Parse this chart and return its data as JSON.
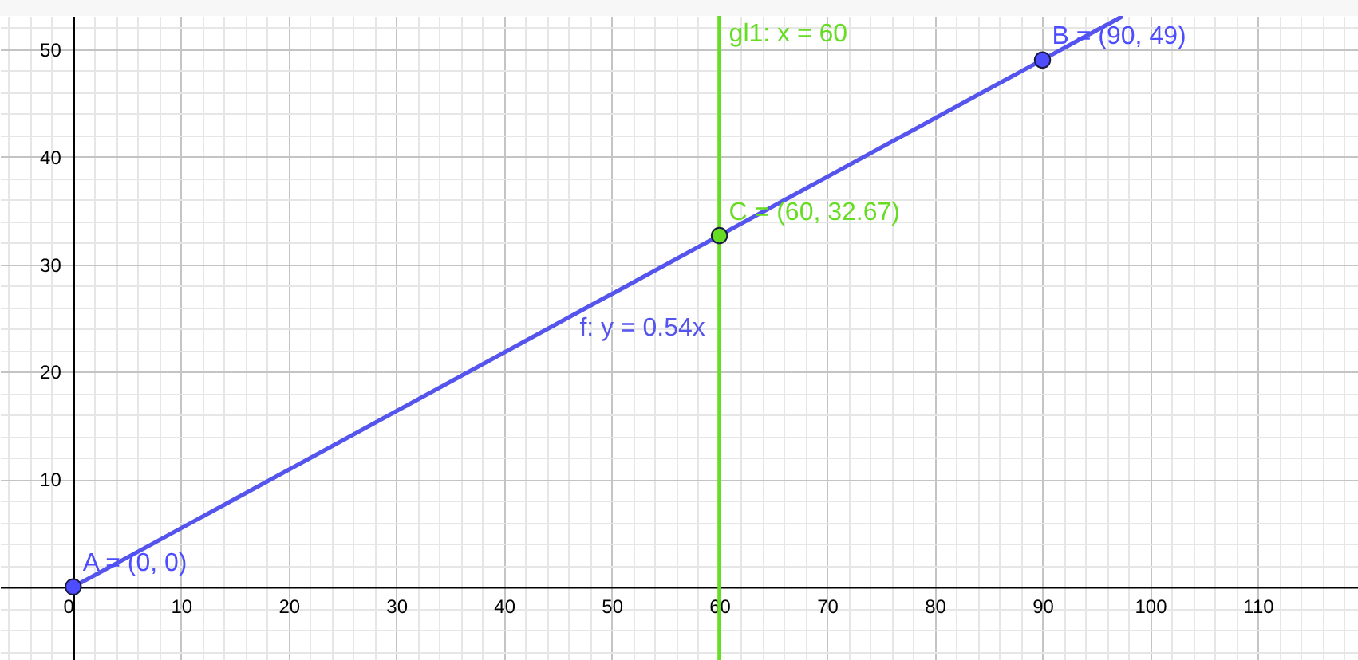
{
  "chart_data": {
    "type": "line",
    "series": [
      {
        "name": "f: y = 0.54x",
        "color": "#5555ee",
        "line_style": "solid",
        "x": [
          0,
          97.3
        ],
        "values": [
          0,
          53.0
        ]
      },
      {
        "type": "scatter",
        "color": "#4d4dff",
        "marker": "circle",
        "x": [
          0,
          90
        ],
        "values": [
          0,
          49
        ],
        "value_labels": [
          "A = (0, 0)",
          "B = (90, 49)"
        ]
      },
      {
        "type": "scatter",
        "color": "#66dd22",
        "marker": "circle",
        "x": [
          60
        ],
        "values": [
          32.67
        ],
        "value_labels": [
          "C = (60, 32.67)"
        ]
      }
    ],
    "xlim": [
      -6.8,
      119.3
    ],
    "ylim": [
      -6.8,
      53.1
    ],
    "xticks": [
      0,
      10,
      20,
      30,
      40,
      50,
      60,
      70,
      80,
      90,
      100,
      110,
      {
        "value": -6,
        "label": null
      },
      {
        "value": -4,
        "label": null
      },
      {
        "value": -2,
        "label": null
      },
      {
        "value": 2,
        "label": null
      },
      {
        "value": 4,
        "label": null
      },
      {
        "value": 6,
        "label": null
      },
      {
        "value": 8,
        "label": null
      },
      {
        "value": 12,
        "label": null
      },
      {
        "value": 14,
        "label": null
      },
      {
        "value": 16,
        "label": null
      },
      {
        "value": 18,
        "label": null
      },
      {
        "value": 22,
        "label": null
      },
      {
        "value": 24,
        "label": null
      },
      {
        "value": 26,
        "label": null
      },
      {
        "value": 28,
        "label": null
      },
      {
        "value": 32,
        "label": null
      },
      {
        "value": 34,
        "label": null
      },
      {
        "value": 36,
        "label": null
      },
      {
        "value": 38,
        "label": null
      },
      {
        "value": 42,
        "label": null
      },
      {
        "value": 44,
        "label": null
      },
      {
        "value": 46,
        "label": null
      },
      {
        "value": 48,
        "label": null
      },
      {
        "value": 52,
        "label": null
      },
      {
        "value": 54,
        "label": null
      },
      {
        "value": 56,
        "label": null
      },
      {
        "value": 58,
        "label": null
      },
      {
        "value": 62,
        "label": null
      },
      {
        "value": 64,
        "label": null
      },
      {
        "value": 66,
        "label": null
      },
      {
        "value": 68,
        "label": null
      },
      {
        "value": 72,
        "label": null
      },
      {
        "value": 74,
        "label": null
      },
      {
        "value": 76,
        "label": null
      },
      {
        "value": 78,
        "label": null
      },
      {
        "value": 82,
        "label": null
      },
      {
        "value": 84,
        "label": null
      },
      {
        "value": 86,
        "label": null
      },
      {
        "value": 88,
        "label": null
      },
      {
        "value": 92,
        "label": null
      },
      {
        "value": 94,
        "label": null
      },
      {
        "value": 96,
        "label": null
      },
      {
        "value": 98,
        "label": null
      },
      {
        "value": 102,
        "label": null
      },
      {
        "value": 104,
        "label": null
      },
      {
        "value": 106,
        "label": null
      },
      {
        "value": 108,
        "label": null
      },
      {
        "value": 112,
        "label": null
      },
      {
        "value": 114,
        "label": null
      },
      {
        "value": 116,
        "label": null
      },
      {
        "value": 118,
        "label": null
      }
    ],
    "yticks": [
      10,
      20,
      30,
      40,
      50,
      {
        "value": 0,
        "label": null
      },
      {
        "value": -6,
        "label": null
      },
      {
        "value": -4,
        "label": null
      },
      {
        "value": -2,
        "label": null
      },
      {
        "value": 2,
        "label": null
      },
      {
        "value": 4,
        "label": null
      },
      {
        "value": 6,
        "label": null
      },
      {
        "value": 8,
        "label": null
      },
      {
        "value": 12,
        "label": null
      },
      {
        "value": 14,
        "label": null
      },
      {
        "value": 16,
        "label": null
      },
      {
        "value": 18,
        "label": null
      },
      {
        "value": 22,
        "label": null
      },
      {
        "value": 24,
        "label": null
      },
      {
        "value": 26,
        "label": null
      },
      {
        "value": 28,
        "label": null
      },
      {
        "value": 32,
        "label": null
      },
      {
        "value": 34,
        "label": null
      },
      {
        "value": 36,
        "label": null
      },
      {
        "value": 38,
        "label": null
      },
      {
        "value": 42,
        "label": null
      },
      {
        "value": 44,
        "label": null
      },
      {
        "value": 46,
        "label": null
      },
      {
        "value": 48,
        "label": null
      },
      {
        "value": 52,
        "label": null
      }
    ],
    "ref_lines": [
      {
        "axis": "x",
        "value": 60,
        "label": "gl1: x = 60",
        "color": "#66dd22"
      }
    ],
    "grid": true
  }
}
